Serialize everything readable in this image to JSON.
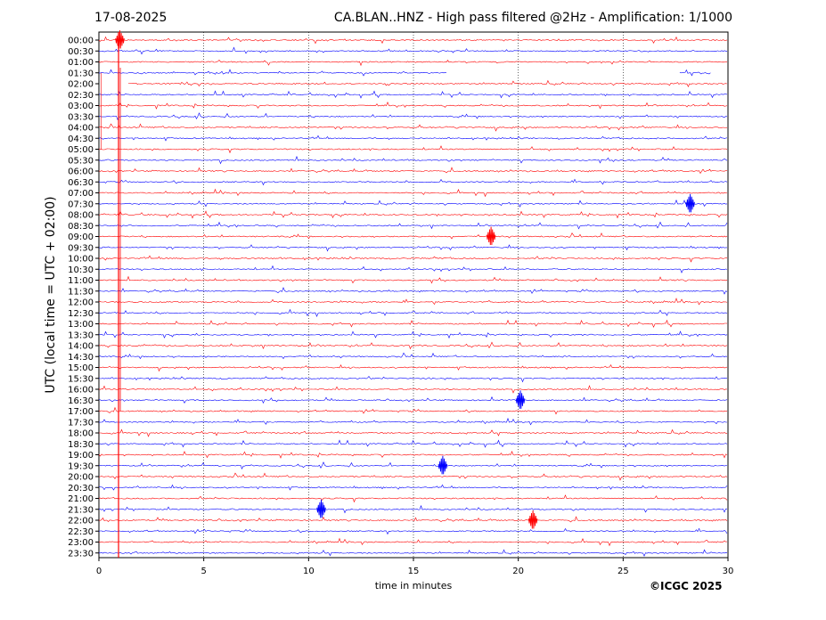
{
  "header": {
    "date": "17-08-2025",
    "title": "CA.BLAN..HNZ - High pass filtered @2Hz - Amplification: 1/1000"
  },
  "footer": {
    "copyright": "©ICGC 2025"
  },
  "chart_data": {
    "type": "line",
    "title": "CA.BLAN..HNZ - High pass filtered @2Hz - Amplification: 1/1000",
    "date": "17-08-2025",
    "xlabel": "time in minutes",
    "ylabel": "UTC (local time = UTC + 02:00)",
    "xlim": [
      0,
      30
    ],
    "xticks": [
      0,
      5,
      10,
      15,
      20,
      25,
      30
    ],
    "yticks": [
      "00:00",
      "00:30",
      "01:00",
      "01:30",
      "02:00",
      "02:30",
      "03:00",
      "03:30",
      "04:00",
      "04:30",
      "05:00",
      "05:30",
      "06:00",
      "06:30",
      "07:00",
      "07:30",
      "08:00",
      "08:30",
      "09:00",
      "09:30",
      "10:00",
      "10:30",
      "11:00",
      "11:30",
      "12:00",
      "12:30",
      "13:00",
      "13:30",
      "14:00",
      "14:30",
      "15:00",
      "15:30",
      "16:00",
      "16:30",
      "17:00",
      "17:30",
      "18:00",
      "18:30",
      "19:00",
      "19:30",
      "20:00",
      "20:30",
      "21:00",
      "21:30",
      "22:00",
      "22:30",
      "23:00",
      "23:30"
    ],
    "grid": "vertical dotted at every 5 minutes",
    "trace_colors": [
      "#ff0000",
      "#0000ff"
    ],
    "gaps": [
      {
        "row": "01:30",
        "from_min": 16.6,
        "to_min": 27.7
      },
      {
        "row": "02:00",
        "from_min": 0.0,
        "to_min": 1.4
      }
    ],
    "trace_end_minutes": {
      "01:30": 29.2,
      "22:30": 30,
      "23:00": 30,
      "23:30": 30
    },
    "notable_events": [
      {
        "row": "00:00",
        "minute": 1.0,
        "note": "large spike spanning rows 00:00-17:00"
      },
      {
        "row": "07:30",
        "minute": 28.2
      },
      {
        "row": "09:00",
        "minute": 18.7
      },
      {
        "row": "16:30",
        "minute": 20.1
      },
      {
        "row": "19:30",
        "minute": 16.4
      },
      {
        "row": "21:30",
        "minute": 10.6
      },
      {
        "row": "22:00",
        "minute": 20.7
      }
    ]
  }
}
